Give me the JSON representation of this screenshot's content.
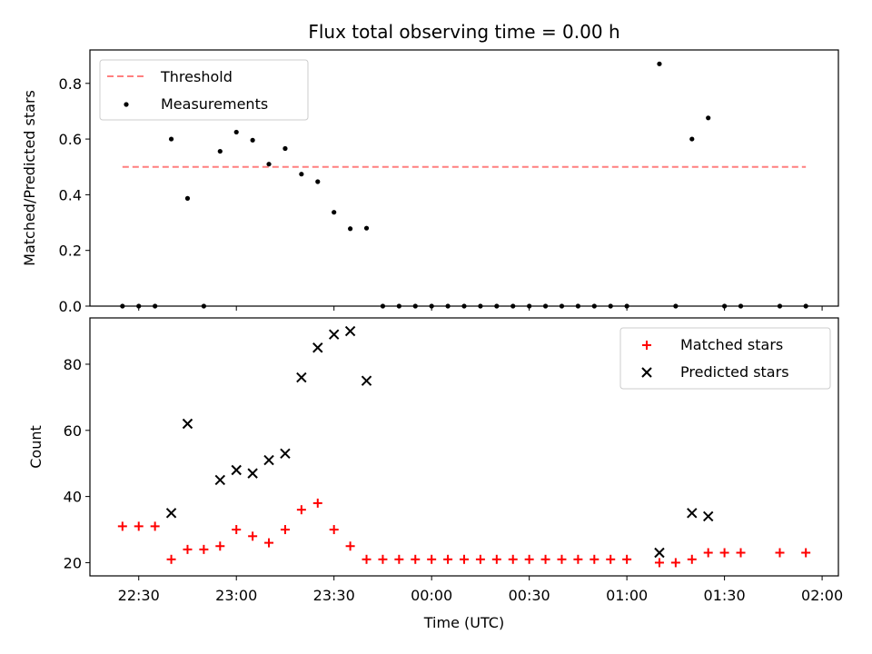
{
  "chart_data": [
    {
      "type": "scatter",
      "title": "Flux total observing time = 0.00 h",
      "ylabel": "Matched/Predicted stars",
      "ylim": [
        0,
        0.92
      ],
      "yticks": [
        "0.0",
        "0.2",
        "0.4",
        "0.6",
        "0.8"
      ],
      "legend_position": "top-left",
      "threshold": {
        "name": "Threshold",
        "value": 0.5,
        "x_start": "22:25",
        "x_end": "01:55",
        "color": "#ff7f7f",
        "style": "dashed"
      },
      "series": [
        {
          "name": "Measurements",
          "color": "#000000",
          "marker": "dot",
          "points": [
            [
              "22:25",
              0.0
            ],
            [
              "22:30",
              0.0
            ],
            [
              "22:35",
              0.0
            ],
            [
              "22:40",
              0.6
            ],
            [
              "22:45",
              0.387
            ],
            [
              "22:50",
              0.0
            ],
            [
              "22:55",
              0.556
            ],
            [
              "23:00",
              0.625
            ],
            [
              "23:05",
              0.596
            ],
            [
              "23:10",
              0.51
            ],
            [
              "23:15",
              0.566
            ],
            [
              "23:20",
              0.474
            ],
            [
              "23:25",
              0.447
            ],
            [
              "23:30",
              0.337
            ],
            [
              "23:35",
              0.278
            ],
            [
              "23:40",
              0.28
            ],
            [
              "23:45",
              0.0
            ],
            [
              "23:50",
              0.0
            ],
            [
              "23:55",
              0.0
            ],
            [
              "00:00",
              0.0
            ],
            [
              "00:05",
              0.0
            ],
            [
              "00:10",
              0.0
            ],
            [
              "00:15",
              0.0
            ],
            [
              "00:20",
              0.0
            ],
            [
              "00:25",
              0.0
            ],
            [
              "00:30",
              0.0
            ],
            [
              "00:35",
              0.0
            ],
            [
              "00:40",
              0.0
            ],
            [
              "00:45",
              0.0
            ],
            [
              "00:50",
              0.0
            ],
            [
              "00:55",
              0.0
            ],
            [
              "01:00",
              0.0
            ],
            [
              "01:10",
              0.87
            ],
            [
              "01:15",
              0.0
            ],
            [
              "01:20",
              0.6
            ],
            [
              "01:25",
              0.676
            ],
            [
              "01:30",
              0.0
            ],
            [
              "01:35",
              0.0
            ],
            [
              "01:47",
              0.0
            ],
            [
              "01:55",
              0.0
            ]
          ]
        }
      ]
    },
    {
      "type": "scatter",
      "xlabel": "Time (UTC)",
      "ylabel": "Count",
      "ylim": [
        16,
        94
      ],
      "yticks": [
        "20",
        "40",
        "60",
        "80"
      ],
      "xlim": [
        "22:15",
        "02:05"
      ],
      "xticks": [
        "22:30",
        "23:00",
        "23:30",
        "00:00",
        "00:30",
        "01:00",
        "01:30",
        "02:00"
      ],
      "legend_position": "top-right",
      "series": [
        {
          "name": "Matched stars",
          "color": "#ff0000",
          "marker": "plus",
          "points": [
            [
              "22:25",
              31
            ],
            [
              "22:30",
              31
            ],
            [
              "22:35",
              31
            ],
            [
              "22:40",
              21
            ],
            [
              "22:45",
              24
            ],
            [
              "22:50",
              24
            ],
            [
              "22:55",
              25
            ],
            [
              "23:00",
              30
            ],
            [
              "23:05",
              28
            ],
            [
              "23:10",
              26
            ],
            [
              "23:15",
              30
            ],
            [
              "23:20",
              36
            ],
            [
              "23:25",
              38
            ],
            [
              "23:30",
              30
            ],
            [
              "23:35",
              25
            ],
            [
              "23:40",
              21
            ],
            [
              "23:45",
              21
            ],
            [
              "23:50",
              21
            ],
            [
              "23:55",
              21
            ],
            [
              "00:00",
              21
            ],
            [
              "00:05",
              21
            ],
            [
              "00:10",
              21
            ],
            [
              "00:15",
              21
            ],
            [
              "00:20",
              21
            ],
            [
              "00:25",
              21
            ],
            [
              "00:30",
              21
            ],
            [
              "00:35",
              21
            ],
            [
              "00:40",
              21
            ],
            [
              "00:45",
              21
            ],
            [
              "00:50",
              21
            ],
            [
              "00:55",
              21
            ],
            [
              "01:00",
              21
            ],
            [
              "01:10",
              20
            ],
            [
              "01:15",
              20
            ],
            [
              "01:20",
              21
            ],
            [
              "01:25",
              23
            ],
            [
              "01:30",
              23
            ],
            [
              "01:35",
              23
            ],
            [
              "01:47",
              23
            ],
            [
              "01:55",
              23
            ]
          ]
        },
        {
          "name": "Predicted stars",
          "color": "#000000",
          "marker": "x",
          "points": [
            [
              "22:40",
              35
            ],
            [
              "22:45",
              62
            ],
            [
              "22:55",
              45
            ],
            [
              "23:00",
              48
            ],
            [
              "23:05",
              47
            ],
            [
              "23:10",
              51
            ],
            [
              "23:15",
              53
            ],
            [
              "23:20",
              76
            ],
            [
              "23:25",
              85
            ],
            [
              "23:30",
              89
            ],
            [
              "23:35",
              90
            ],
            [
              "23:40",
              75
            ],
            [
              "01:10",
              23
            ],
            [
              "01:20",
              35
            ],
            [
              "01:25",
              34
            ]
          ]
        }
      ]
    }
  ]
}
